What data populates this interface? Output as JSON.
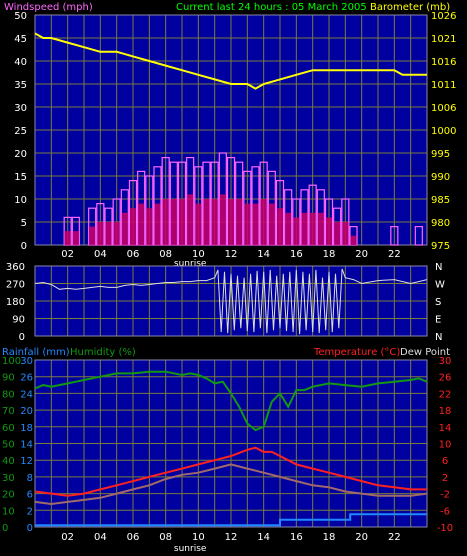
{
  "colors": {
    "background": "#000000",
    "plot_bg": "#0000a0",
    "grid": "#7a7a3a",
    "wind_label": "#ff66ff",
    "title": "#00ff00",
    "barometer": "#ffff00",
    "direction_line": "#dddddd",
    "rainfall": "#2288ff",
    "humidity": "#119911",
    "temperature": "#ff2020",
    "dewpoint": "#a06a6a",
    "axis_text": "#ffffff"
  },
  "chart_data": [
    {
      "type": "line",
      "title": "Current last 24 hours : 05 March 2005",
      "ylabel": "Windspeed (mph)",
      "y2label": "Barometer (mb)",
      "xlabel": "sunrise",
      "xlim": [
        0,
        24
      ],
      "ylim": [
        0,
        50
      ],
      "y2lim": [
        975,
        1026
      ],
      "x_ticks": [
        2,
        4,
        6,
        8,
        10,
        12,
        14,
        16,
        18,
        20,
        22
      ],
      "x_tick_labels": [
        "02",
        "04",
        "06",
        "08",
        "10",
        "12",
        "14",
        "16",
        "18",
        "20",
        "22"
      ],
      "y_ticks": [
        0,
        5,
        10,
        15,
        20,
        25,
        30,
        35,
        40,
        45,
        50
      ],
      "y_tick_labels": [
        "0",
        "5",
        "10",
        "15",
        "20",
        "25",
        "30",
        "35",
        "40",
        "45",
        "50"
      ],
      "y2_ticks": [
        975,
        980,
        985,
        990,
        995,
        1000,
        1006,
        1011,
        1016,
        1021,
        1026
      ],
      "y2_tick_labels": [
        "975",
        "980",
        "985",
        "990",
        "995",
        "1000",
        "1006",
        "1011",
        "1016",
        "1021",
        "1026"
      ],
      "grid": true,
      "series": [
        {
          "name": "Windspeed (mph)",
          "kind": "gust_bars",
          "color": "#ff66ff",
          "x": [
            1.0,
            1.5,
            2.0,
            2.5,
            3.0,
            3.5,
            4.0,
            4.5,
            5.0,
            5.5,
            6.0,
            6.5,
            7.0,
            7.5,
            8.0,
            8.5,
            9.0,
            9.5,
            10.0,
            10.5,
            11.0,
            11.5,
            12.0,
            12.5,
            13.0,
            13.5,
            14.0,
            14.5,
            15.0,
            15.5,
            16.0,
            16.5,
            17.0,
            17.5,
            18.0,
            18.5,
            19.0,
            19.5,
            20.0,
            20.5,
            21.0,
            21.5,
            22.0,
            22.5,
            23.0,
            23.5
          ],
          "values": [
            0,
            0,
            6,
            6,
            0,
            8,
            9,
            8,
            10,
            12,
            14,
            16,
            15,
            17,
            19,
            18,
            18,
            19,
            17,
            18,
            18,
            20,
            19,
            18,
            16,
            17,
            18,
            16,
            14,
            12,
            10,
            12,
            13,
            12,
            10,
            8,
            10,
            4,
            0,
            0,
            0,
            0,
            4,
            0,
            0,
            4
          ]
        },
        {
          "name": "Wind average",
          "kind": "avg_bars",
          "color": "#cc0066",
          "x": [
            1.0,
            1.5,
            2.0,
            2.5,
            3.0,
            3.5,
            4.0,
            4.5,
            5.0,
            5.5,
            6.0,
            6.5,
            7.0,
            7.5,
            8.0,
            8.5,
            9.0,
            9.5,
            10.0,
            10.5,
            11.0,
            11.5,
            12.0,
            12.5,
            13.0,
            13.5,
            14.0,
            14.5,
            15.0,
            15.5,
            16.0,
            16.5,
            17.0,
            17.5,
            18.0,
            18.5,
            19.0,
            19.5,
            20.0,
            20.5,
            21.0,
            21.5,
            22.0,
            22.5,
            23.0,
            23.5
          ],
          "values": [
            0,
            0,
            3,
            3,
            0,
            4,
            5,
            5,
            5,
            7,
            8,
            9,
            8,
            9,
            10,
            10,
            10,
            11,
            9,
            10,
            10,
            11,
            10,
            10,
            9,
            9,
            10,
            9,
            8,
            7,
            6,
            7,
            7,
            7,
            6,
            5,
            5,
            2,
            0,
            0,
            0,
            0,
            0,
            0,
            0,
            0
          ]
        },
        {
          "name": "Barometer (mb)",
          "kind": "line",
          "color": "#ffff00",
          "x": [
            0,
            0.5,
            1,
            2,
            3,
            4,
            5,
            6,
            7,
            8,
            9,
            10,
            11,
            12,
            13,
            13.5,
            14,
            15,
            16,
            17,
            18,
            19,
            20,
            21,
            22,
            22.5,
            23,
            24
          ],
          "values": [
            1022,
            1021,
            1021,
            1020,
            1019,
            1018,
            1018,
            1017,
            1016,
            1015,
            1014,
            1013,
            1012,
            1011,
            1011,
            1010,
            1011,
            1012,
            1013,
            1014,
            1014,
            1014,
            1014,
            1014,
            1014,
            1013,
            1013,
            1013
          ]
        }
      ]
    },
    {
      "type": "line",
      "title": "",
      "xlim": [
        0,
        24
      ],
      "ylim": [
        0,
        360
      ],
      "y_ticks": [
        0,
        90,
        180,
        270,
        360
      ],
      "y_tick_labels": [
        "0",
        "90",
        "180",
        "270",
        "360"
      ],
      "right_labels": [
        "N",
        "W",
        "S",
        "E",
        "N"
      ],
      "right_label_values": [
        360,
        270,
        180,
        90,
        0
      ],
      "grid": true,
      "series": [
        {
          "name": "Wind direction",
          "kind": "line",
          "color": "#dddddd",
          "x": [
            0,
            0.5,
            1,
            1.5,
            2,
            2.5,
            3,
            3.5,
            4,
            4.5,
            5,
            5.5,
            6,
            6.5,
            7,
            7.5,
            8,
            8.5,
            9,
            9.5,
            10,
            10.5,
            11,
            11.2,
            11.4,
            11.6,
            11.8,
            12,
            12.2,
            12.4,
            12.6,
            12.8,
            13,
            13.2,
            13.4,
            13.6,
            13.8,
            14,
            14.2,
            14.4,
            14.6,
            14.8,
            15,
            15.2,
            15.4,
            15.6,
            15.8,
            16,
            16.2,
            16.4,
            16.6,
            16.8,
            17,
            17.2,
            17.4,
            17.6,
            17.8,
            18,
            18.2,
            18.4,
            18.6,
            18.8,
            19,
            19.5,
            20,
            21,
            22,
            23,
            24
          ],
          "values": [
            270,
            275,
            265,
            240,
            245,
            240,
            245,
            250,
            255,
            250,
            250,
            260,
            265,
            260,
            265,
            270,
            275,
            275,
            280,
            280,
            285,
            285,
            300,
            340,
            20,
            330,
            15,
            320,
            30,
            310,
            40,
            300,
            25,
            320,
            20,
            335,
            40,
            330,
            15,
            340,
            30,
            310,
            40,
            320,
            25,
            330,
            20,
            340,
            10,
            330,
            30,
            320,
            20,
            340,
            15,
            300,
            30,
            330,
            20,
            320,
            40,
            345,
            300,
            290,
            270,
            285,
            290,
            270,
            290
          ]
        }
      ]
    },
    {
      "type": "line",
      "title": "",
      "xlabel": "sunrise",
      "xlim": [
        0,
        24
      ],
      "ylim": [
        0,
        30
      ],
      "x_ticks": [
        2,
        4,
        6,
        8,
        10,
        12,
        14,
        16,
        18,
        20,
        22
      ],
      "x_tick_labels": [
        "02",
        "04",
        "06",
        "08",
        "10",
        "12",
        "14",
        "16",
        "18",
        "20",
        "22"
      ],
      "left_label_rainfall": "Rainfall (mm)",
      "left_label_humidity": "Humidity (%)",
      "right_label_temperature": "Temperature (°C)",
      "right_label_dewpoint": "Dew Point",
      "rain_ticks": [
        0,
        2,
        4,
        6,
        8,
        10,
        12,
        14,
        16,
        18,
        20,
        22,
        24,
        26,
        28,
        30
      ],
      "rain_tick_labels": [
        "0",
        "2",
        "4",
        "6",
        "8",
        "10",
        "12",
        "14",
        "16",
        "18",
        "20",
        "22",
        "24",
        "26",
        "28",
        "30"
      ],
      "humidity_ticks": [
        0,
        10,
        20,
        30,
        40,
        50,
        60,
        70,
        80,
        90,
        100
      ],
      "humidity_tick_labels": [
        "0",
        "10",
        "20",
        "30",
        "40",
        "50",
        "60",
        "70",
        "80",
        "90",
        "100"
      ],
      "temp_ticks": [
        -10,
        -6,
        -2,
        2,
        6,
        10,
        14,
        18,
        22,
        26,
        30
      ],
      "temp_tick_labels": [
        "-10",
        "-6",
        "-2",
        "2",
        "6",
        "10",
        "14",
        "18",
        "22",
        "26",
        "30"
      ],
      "temp_lim": [
        -10,
        30
      ],
      "humidity_lim": [
        0,
        100
      ],
      "grid": true,
      "series": [
        {
          "name": "Humidity (%)",
          "kind": "line",
          "color": "#119911",
          "axis": "humidity",
          "x": [
            0,
            0.5,
            1,
            2,
            3,
            4,
            5,
            6,
            7,
            8,
            9,
            9.5,
            10,
            10.5,
            11,
            11.5,
            12,
            12.5,
            13,
            13.5,
            14,
            14.5,
            15,
            15.5,
            16,
            16.5,
            17,
            18,
            19,
            20,
            21,
            22,
            23,
            23.5,
            24
          ],
          "values": [
            83,
            85,
            84,
            86,
            88,
            90,
            92,
            92,
            93,
            93,
            91,
            92,
            91,
            89,
            86,
            87,
            80,
            72,
            62,
            58,
            60,
            75,
            80,
            72,
            82,
            82,
            84,
            86,
            85,
            84,
            86,
            87,
            88,
            89,
            87
          ]
        },
        {
          "name": "Temperature (°C)",
          "kind": "line",
          "color": "#ff2020",
          "axis": "temp",
          "x": [
            0,
            1,
            2,
            3,
            4,
            5,
            6,
            7,
            8,
            9,
            10,
            11,
            12,
            13,
            13.5,
            14,
            14.5,
            15,
            16,
            17,
            18,
            19,
            20,
            21,
            22,
            23,
            24
          ],
          "values": [
            -1.5,
            -2,
            -2.5,
            -2,
            -1,
            0,
            1,
            2,
            3,
            4,
            5,
            6,
            7,
            8.5,
            9,
            8,
            8,
            7,
            5,
            4,
            3,
            2,
            1,
            0,
            -0.5,
            -1,
            -1
          ]
        },
        {
          "name": "Dew Point",
          "kind": "line",
          "color": "#a06a6a",
          "axis": "temp",
          "x": [
            0,
            1,
            2,
            3,
            4,
            5,
            6,
            7,
            8,
            9,
            10,
            11,
            12,
            13,
            14,
            15,
            16,
            17,
            18,
            19,
            20,
            21,
            22,
            23,
            24
          ],
          "values": [
            -4,
            -4.5,
            -4,
            -3.5,
            -3,
            -2,
            -1,
            0,
            1.5,
            2.5,
            3,
            4,
            5,
            4,
            3,
            2,
            1,
            0,
            -0.5,
            -1.5,
            -2,
            -2.5,
            -2.5,
            -2.5,
            -2
          ]
        },
        {
          "name": "Rainfall (mm)",
          "kind": "step",
          "color": "#2288ff",
          "axis": "rain",
          "x": [
            0,
            15,
            15,
            19.3,
            19.3,
            24
          ],
          "values": [
            0.3,
            0.3,
            1.3,
            1.3,
            2.3,
            2.3
          ]
        }
      ]
    }
  ]
}
